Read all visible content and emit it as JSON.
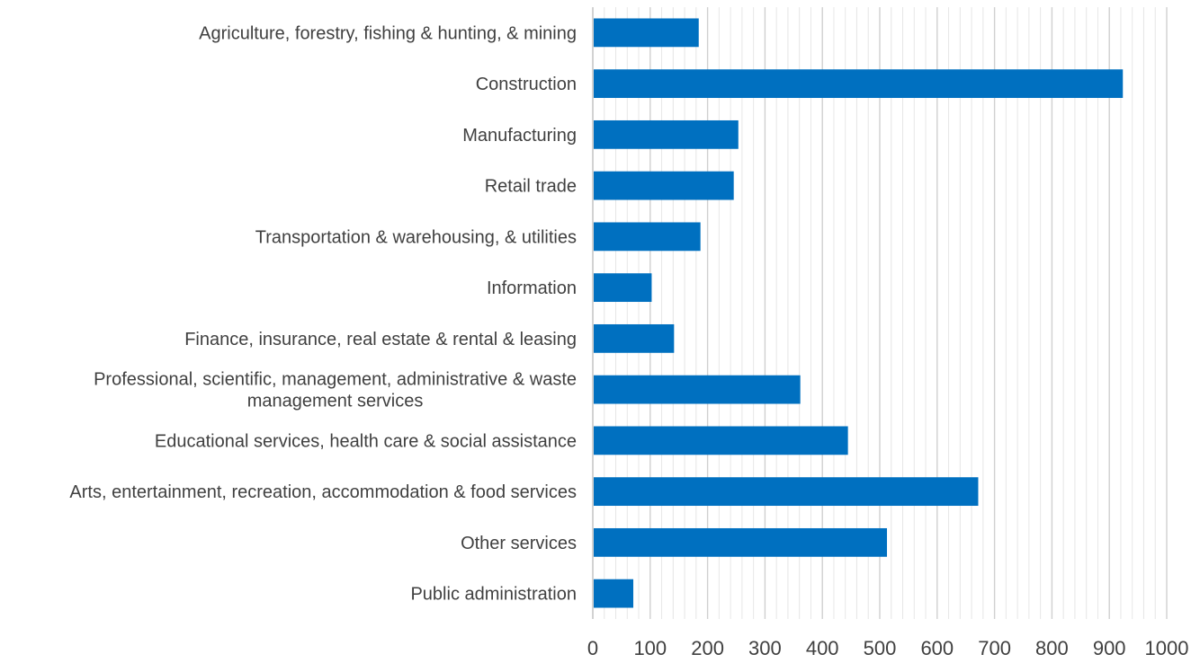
{
  "chart_data": {
    "type": "bar",
    "orientation": "horizontal",
    "categories": [
      [
        "Agriculture, forestry, fishing & hunting, & mining"
      ],
      [
        "Construction"
      ],
      [
        "Manufacturing"
      ],
      [
        "Retail trade"
      ],
      [
        "Transportation & warehousing, & utilities"
      ],
      [
        "Information"
      ],
      [
        "Finance, insurance, real estate & rental & leasing"
      ],
      [
        "Professional, scientific, management, administrative & waste",
        "management services"
      ],
      [
        "Educational services, health care & social assistance"
      ],
      [
        "Arts, entertainment, recreation, accommodation & food services"
      ],
      [
        "Other services"
      ],
      [
        "Public administration"
      ]
    ],
    "values": [
      183,
      922,
      252,
      244,
      186,
      101,
      140,
      360,
      443,
      670,
      511,
      69
    ],
    "xlim": [
      0,
      1000
    ],
    "xticks": [
      0,
      100,
      200,
      300,
      400,
      500,
      600,
      700,
      800,
      900,
      1000
    ],
    "minor_step": 20,
    "grid": true,
    "legend": "none",
    "bar_color": "#0070C0"
  }
}
